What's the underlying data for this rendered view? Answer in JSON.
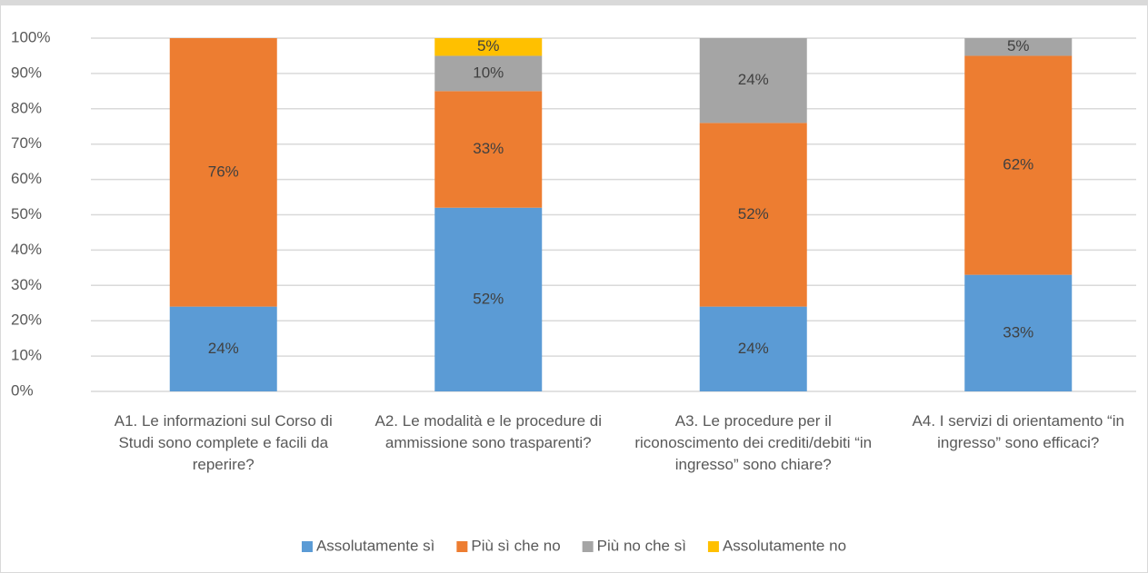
{
  "chart_data": {
    "type": "stacked_bar",
    "categories": [
      "A1. Le informazioni sul Corso di Studi sono complete e facili da reperire?",
      "A2. Le modalità e le procedure di ammissione sono trasparenti?",
      "A3. Le procedure per il riconoscimento dei crediti/debiti “in ingresso” sono chiare?",
      "A4. I servizi di orientamento “in ingresso” sono efficaci?"
    ],
    "series": [
      {
        "name": "Assolutamente sì",
        "color": "#5b9bd5",
        "values": [
          24,
          52,
          24,
          33
        ],
        "value_labels": [
          "24%",
          "52%",
          "24%",
          "33%"
        ]
      },
      {
        "name": "Più sì che no",
        "color": "#ed7d31",
        "values": [
          76,
          33,
          52,
          62
        ],
        "value_labels": [
          "76%",
          "33%",
          "52%",
          "62%"
        ]
      },
      {
        "name": "Più no che sì",
        "color": "#a5a5a5",
        "values": [
          null,
          10,
          24,
          5
        ],
        "value_labels": [
          null,
          "10%",
          "24%",
          "5%"
        ]
      },
      {
        "name": "Assolutamente no",
        "color": "#ffc000",
        "values": [
          null,
          5,
          null,
          null
        ],
        "value_labels": [
          null,
          "5%",
          null,
          null
        ]
      }
    ],
    "ylim": [
      0,
      100
    ],
    "yticks": [
      {
        "value": 0,
        "label": "0%"
      },
      {
        "value": 10,
        "label": "10%"
      },
      {
        "value": 20,
        "label": "20%"
      },
      {
        "value": 30,
        "label": "30%"
      },
      {
        "value": 40,
        "label": "40%"
      },
      {
        "value": 50,
        "label": "50%"
      },
      {
        "value": 60,
        "label": "60%"
      },
      {
        "value": 70,
        "label": "70%"
      },
      {
        "value": 80,
        "label": "80%"
      },
      {
        "value": 90,
        "label": "90%"
      },
      {
        "value": 100,
        "label": "100%"
      }
    ],
    "grid": true,
    "legend": "bottom"
  }
}
